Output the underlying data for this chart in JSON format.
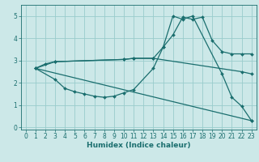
{
  "title": "",
  "xlabel": "Humidex (Indice chaleur)",
  "xlim": [
    -0.5,
    23.5
  ],
  "ylim": [
    -0.1,
    5.5
  ],
  "xticks": [
    0,
    1,
    2,
    3,
    4,
    5,
    6,
    7,
    8,
    9,
    10,
    11,
    12,
    13,
    14,
    15,
    16,
    17,
    18,
    19,
    20,
    21,
    22,
    23
  ],
  "yticks": [
    0,
    1,
    2,
    3,
    4,
    5
  ],
  "bg_color": "#cce8e8",
  "grid_color": "#99cccc",
  "line_color": "#1a6e6e",
  "lines": [
    {
      "x": [
        1,
        2,
        3,
        10,
        11,
        13,
        14,
        15,
        16,
        17,
        18,
        19,
        20,
        21,
        22,
        23
      ],
      "y": [
        2.65,
        2.85,
        2.95,
        3.05,
        3.1,
        3.1,
        3.6,
        4.15,
        4.95,
        4.85,
        4.95,
        3.9,
        3.4,
        3.3,
        3.3,
        3.3
      ]
    },
    {
      "x": [
        1,
        3,
        4,
        5,
        6,
        7,
        8,
        9,
        10,
        11,
        13,
        14,
        15,
        16,
        17,
        20,
        21,
        22,
        23
      ],
      "y": [
        2.65,
        2.15,
        1.75,
        1.6,
        1.5,
        1.4,
        1.35,
        1.4,
        1.55,
        1.7,
        2.65,
        3.6,
        5.0,
        4.85,
        5.0,
        2.4,
        1.35,
        0.95,
        0.3
      ]
    },
    {
      "x": [
        1,
        3,
        10,
        11,
        13,
        22,
        23
      ],
      "y": [
        2.65,
        2.95,
        3.05,
        3.1,
        3.1,
        2.5,
        2.4
      ]
    },
    {
      "x": [
        1,
        23
      ],
      "y": [
        2.65,
        0.3
      ]
    }
  ],
  "tick_fontsize": 5.5,
  "xlabel_fontsize": 6.5,
  "marker_size": 2.0,
  "linewidth": 0.9
}
